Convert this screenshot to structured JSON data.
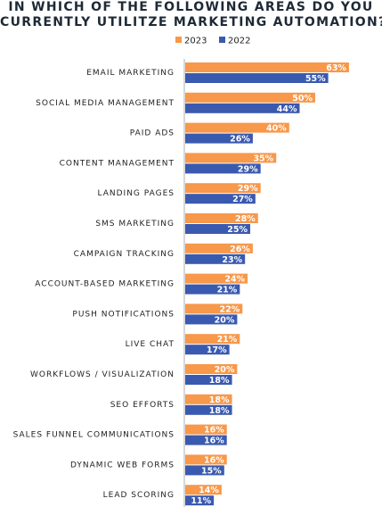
{
  "chart_data": {
    "type": "bar",
    "orientation": "horizontal",
    "title_line1": "IN WHICH OF THE FOLLOWING AREAS DO YOU",
    "title_line2": "CURRENTLY UTILITZE MARKETING AUTOMATION?",
    "categories": [
      "EMAIL MARKETING",
      "SOCIAL MEDIA MANAGEMENT",
      "PAID ADS",
      "CONTENT MANAGEMENT",
      "LANDING PAGES",
      "SMS MARKETING",
      "CAMPAIGN TRACKING",
      "ACCOUNT-BASED MARKETING",
      "PUSH NOTIFICATIONS",
      "LIVE CHAT",
      "WORKFLOWS / VISUALIZATION",
      "SEO EFFORTS",
      "SALES FUNNEL COMMUNICATIONS",
      "DYNAMIC WEB FORMS",
      "LEAD SCORING"
    ],
    "series": [
      {
        "name": "2023",
        "color": "#f7984a",
        "values": [
          63,
          50,
          40,
          35,
          29,
          28,
          26,
          24,
          22,
          21,
          20,
          18,
          16,
          16,
          14
        ]
      },
      {
        "name": "2022",
        "color": "#3a5ab0",
        "values": [
          55,
          44,
          26,
          29,
          27,
          25,
          23,
          21,
          20,
          17,
          18,
          18,
          16,
          15,
          11
        ]
      }
    ],
    "value_suffix": "%",
    "legend_position": "top",
    "axis_line_color": "#b0b0b0"
  }
}
